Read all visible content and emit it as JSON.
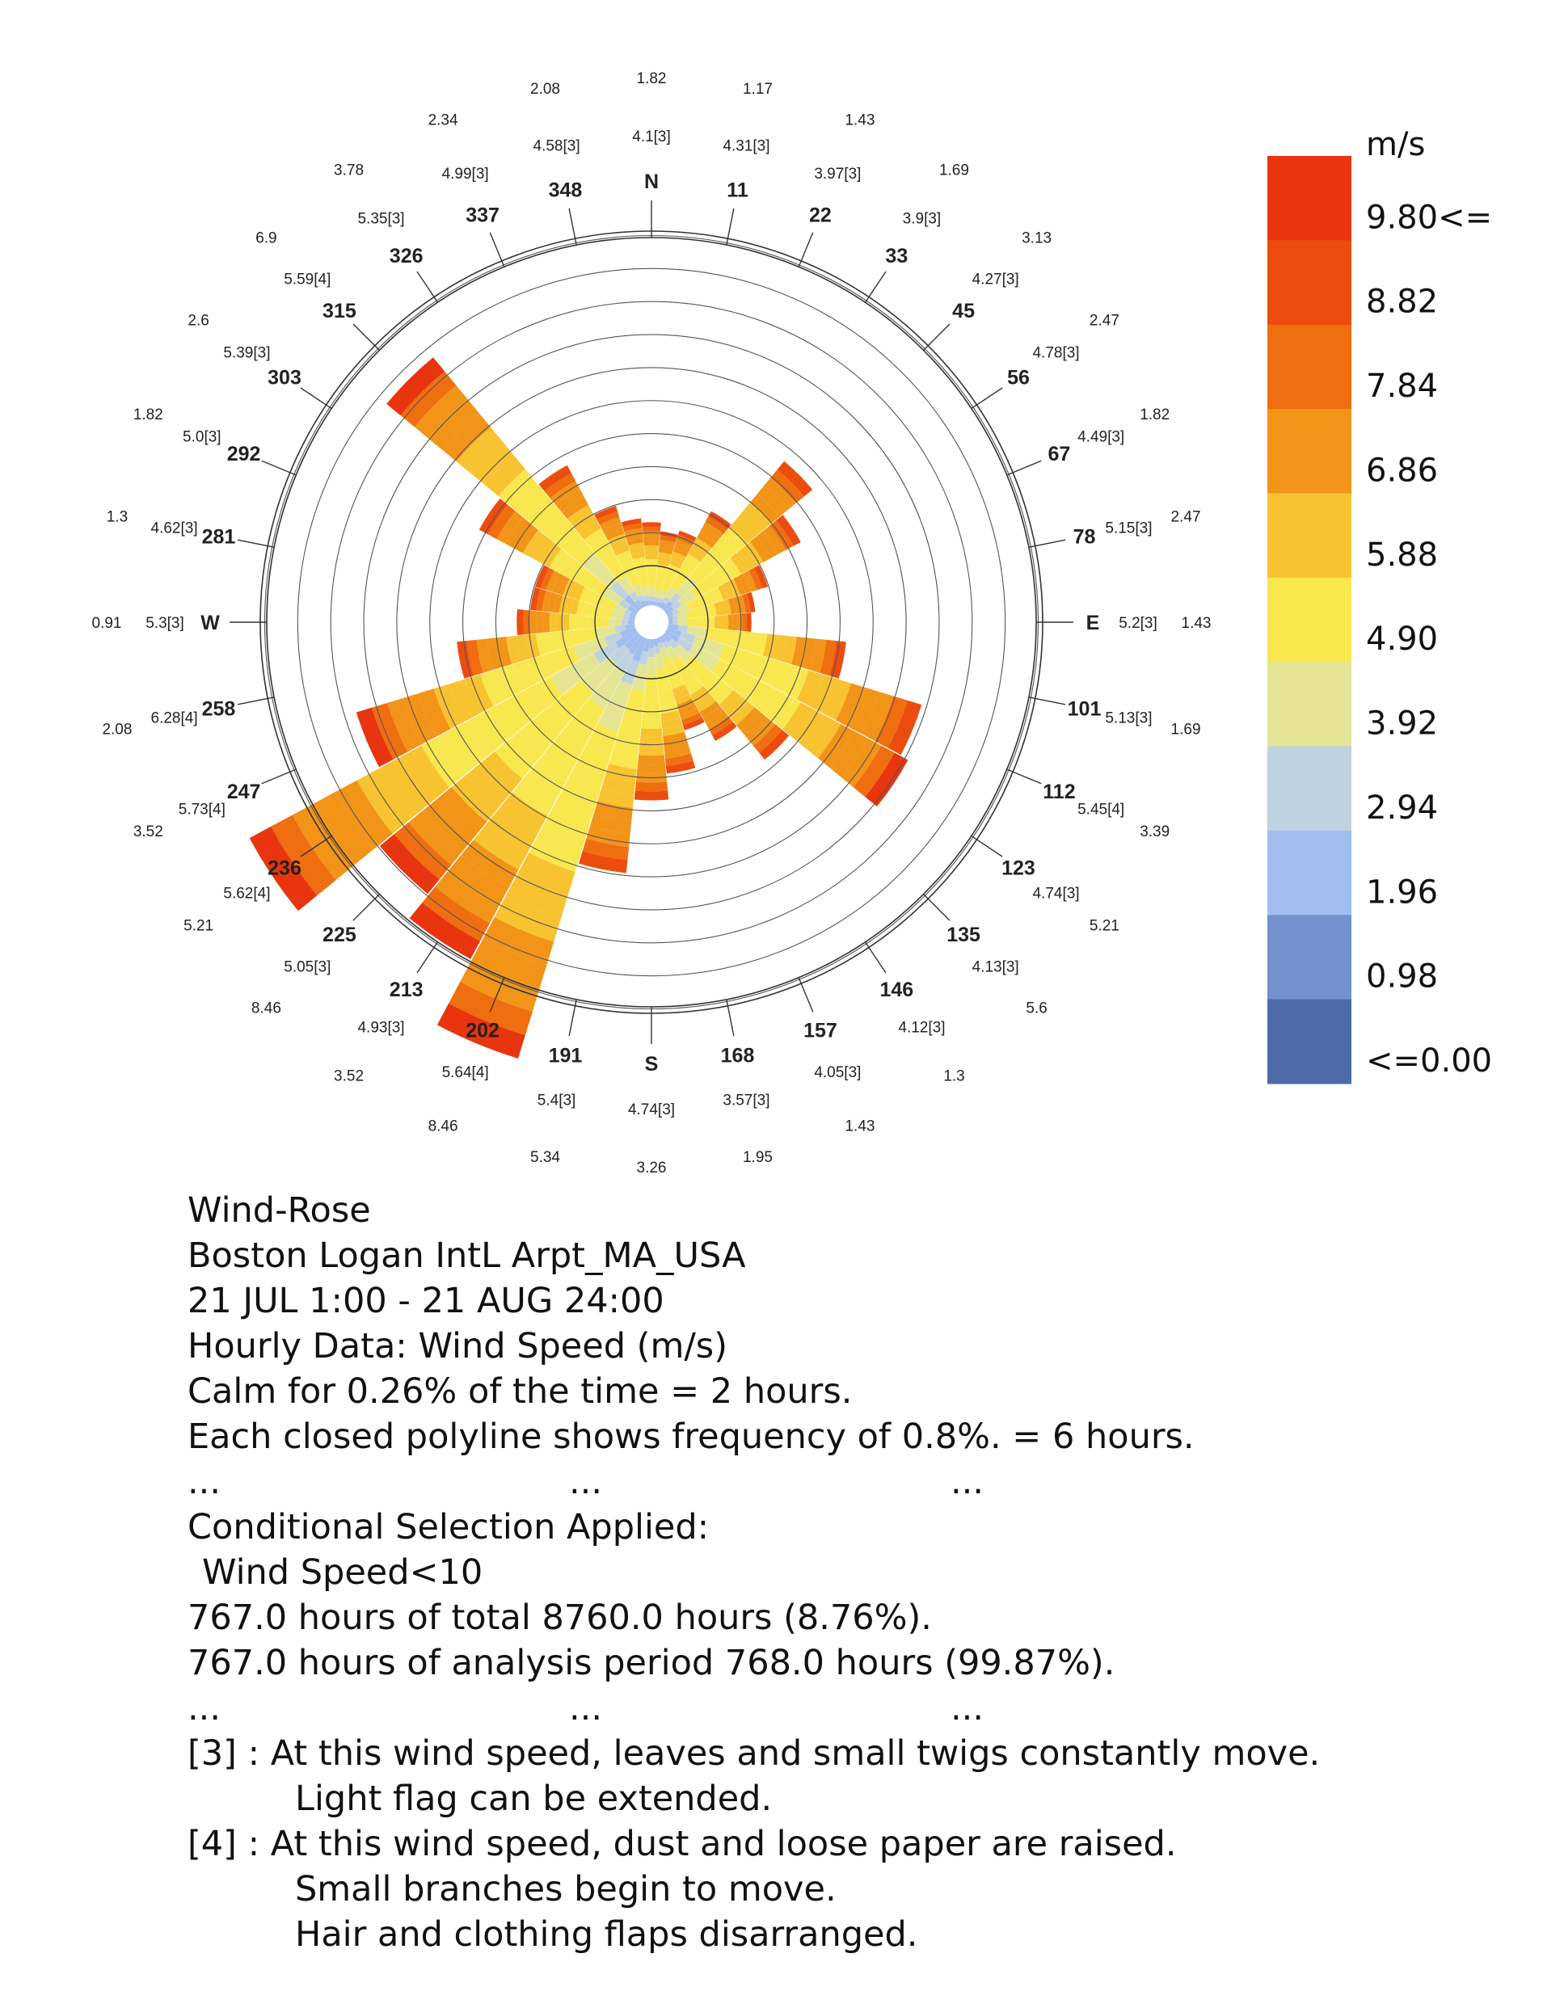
{
  "chart_data": {
    "type": "wind-rose",
    "legend": {
      "unit": "m/s",
      "labels": [
        "9.80<=",
        "8.82",
        "7.84",
        "6.86",
        "5.88",
        "4.90",
        "3.92",
        "2.94",
        "1.96",
        "0.98",
        "<=0.00"
      ],
      "colors": [
        "#e8350f",
        "#ec4d0f",
        "#ef6e10",
        "#f29418",
        "#f8c331",
        "#f8e74f",
        "#e3e594",
        "#bfd2df",
        "#a2bdf0",
        "#7291cd",
        "#4f6aa8"
      ]
    },
    "directions": [
      {
        "label": "N",
        "bold": true,
        "angle": 0,
        "avg": "4.1[3]",
        "max": "1.82"
      },
      {
        "label": "11",
        "angle": 11.25,
        "avg": "4.31[3]",
        "max": "1.17"
      },
      {
        "label": "22",
        "angle": 22.5,
        "avg": "3.97[3]",
        "max": "1.43"
      },
      {
        "label": "33",
        "angle": 33.75,
        "avg": "3.9[3]",
        "max": "1.69"
      },
      {
        "label": "45",
        "angle": 45,
        "avg": "4.27[3]",
        "max": "3.13"
      },
      {
        "label": "56",
        "angle": 56.25,
        "avg": "4.78[3]",
        "max": "2.47"
      },
      {
        "label": "67",
        "angle": 67.5,
        "avg": "4.49[3]",
        "max": "1.82"
      },
      {
        "label": "78",
        "angle": 78.75,
        "avg": "5.15[3]",
        "max": "2.47"
      },
      {
        "label": "E",
        "angle": 90,
        "avg": "5.2[3]",
        "max": "1.43"
      },
      {
        "label": "101",
        "angle": 101.25,
        "avg": "5.13[3]",
        "max": "1.69"
      },
      {
        "label": "112",
        "angle": 112.5,
        "avg": "5.45[4]",
        "max": "3.39"
      },
      {
        "label": "123",
        "angle": 123.75,
        "avg": "4.74[3]",
        "max": "5.21"
      },
      {
        "label": "135",
        "angle": 135,
        "avg": "4.13[3]",
        "max": "5.6"
      },
      {
        "label": "146",
        "angle": 146.25,
        "avg": "4.12[3]",
        "max": "1.3"
      },
      {
        "label": "157",
        "angle": 157.5,
        "avg": "4.05[3]",
        "max": "1.43"
      },
      {
        "label": "168",
        "angle": 168.75,
        "avg": "3.57[3]",
        "max": "1.95"
      },
      {
        "label": "S",
        "angle": 180,
        "avg": "4.74[3]",
        "max": "3.26"
      },
      {
        "label": "191",
        "angle": 191.25,
        "avg": "5.4[3]",
        "max": "5.34"
      },
      {
        "label": "202",
        "angle": 202.5,
        "avg": "5.64[4]",
        "max": "8.46"
      },
      {
        "label": "213",
        "angle": 213.75,
        "avg": "4.93[3]",
        "max": "3.52"
      },
      {
        "label": "225",
        "angle": 225,
        "avg": "5.05[3]",
        "max": "8.46"
      },
      {
        "label": "236",
        "angle": 236.25,
        "avg": "5.62[4]",
        "max": "5.21"
      },
      {
        "label": "247",
        "angle": 247.5,
        "avg": "5.73[4]",
        "max": "3.52"
      },
      {
        "label": "258",
        "angle": 258.75,
        "avg": "6.28[4]",
        "max": "2.08"
      },
      {
        "label": "W",
        "angle": 270,
        "avg": "5.3[3]",
        "max": "0.91"
      },
      {
        "label": "281",
        "angle": 281.25,
        "avg": "4.62[3]",
        "max": "1.3"
      },
      {
        "label": "292",
        "angle": 292.5,
        "avg": "5.0[3]",
        "max": "1.82"
      },
      {
        "label": "303",
        "angle": 303.75,
        "avg": "5.39[3]",
        "max": "2.6"
      },
      {
        "label": "315",
        "angle": 315,
        "avg": "5.59[4]",
        "max": "6.9"
      },
      {
        "label": "326",
        "angle": 326.25,
        "avg": "5.35[3]",
        "max": "3.78"
      },
      {
        "label": "337",
        "angle": 337.5,
        "avg": "4.99[3]",
        "max": "2.34"
      },
      {
        "label": "348",
        "angle": 348.75,
        "avg": "4.58[3]",
        "max": "2.08"
      }
    ],
    "ring_frequency_percent": 0.8,
    "ring_count": 12,
    "petals": [
      {
        "angle": 0,
        "freq": 1.0
      },
      {
        "angle": 11.25,
        "freq": 0.8
      },
      {
        "angle": 22.5,
        "freq": 0.9
      },
      {
        "angle": 33.75,
        "freq": 1.6
      },
      {
        "angle": 45,
        "freq": 3.5
      },
      {
        "angle": 56.25,
        "freq": 2.6
      },
      {
        "angle": 67.5,
        "freq": 1.5
      },
      {
        "angle": 78.75,
        "freq": 1.1
      },
      {
        "angle": 90,
        "freq": 1.0
      },
      {
        "angle": 101.25,
        "freq": 3.2
      },
      {
        "angle": 112.5,
        "freq": 5.2
      },
      {
        "angle": 123.75,
        "freq": 5.4
      },
      {
        "angle": 135,
        "freq": 2.8
      },
      {
        "angle": 146.25,
        "freq": 1.8
      },
      {
        "angle": 157.5,
        "freq": 1.3
      },
      {
        "angle": 168.75,
        "freq": 2.2
      },
      {
        "angle": 180,
        "freq": 2.8
      },
      {
        "angle": 191.25,
        "freq": 4.5
      },
      {
        "angle": 202.5,
        "freq": 9.2
      },
      {
        "angle": 213.75,
        "freq": 7.5
      },
      {
        "angle": 225,
        "freq": 6.8
      },
      {
        "angle": 236.25,
        "freq": 9.2
      },
      {
        "angle": 247.5,
        "freq": 5.8
      },
      {
        "angle": 258.75,
        "freq": 3.2
      },
      {
        "angle": 270,
        "freq": 1.8
      },
      {
        "angle": 281.25,
        "freq": 1.5
      },
      {
        "angle": 292.5,
        "freq": 1.5
      },
      {
        "angle": 303.75,
        "freq": 3.2
      },
      {
        "angle": 315,
        "freq": 6.6
      },
      {
        "angle": 326.25,
        "freq": 2.8
      },
      {
        "angle": 337.5,
        "freq": 1.5
      },
      {
        "angle": 348.75,
        "freq": 1.1
      }
    ]
  },
  "caption": {
    "lines": [
      "Wind-Rose",
      "Boston Logan IntL Arpt_MA_USA",
      "21 JUL 1:00 - 21 AUG 24:00",
      "Hourly Data: Wind Speed (m/s)",
      "Calm for 0.26% of the time = 2 hours.",
      "Each closed polyline shows frequency of 0.8%. = 6 hours."
    ],
    "dots": [
      "...",
      "...",
      "..."
    ],
    "conditional_title": "Conditional Selection Applied:",
    "condition": "Wind Speed<10",
    "hours_total": "767.0 hours of total 8760.0 hours (8.76%).",
    "hours_period": "767.0 hours of analysis period 768.0 hours (99.87%).",
    "note3_line1": "[3] : At this wind speed, leaves and small twigs constantly move.",
    "note3_line2": "Light flag can be extended.",
    "note4_line1": "[4] : At this wind speed, dust and loose paper are raised.",
    "note4_line2": "Small branches begin to move.",
    "note4_line3": "Hair and clothing flaps disarranged."
  }
}
